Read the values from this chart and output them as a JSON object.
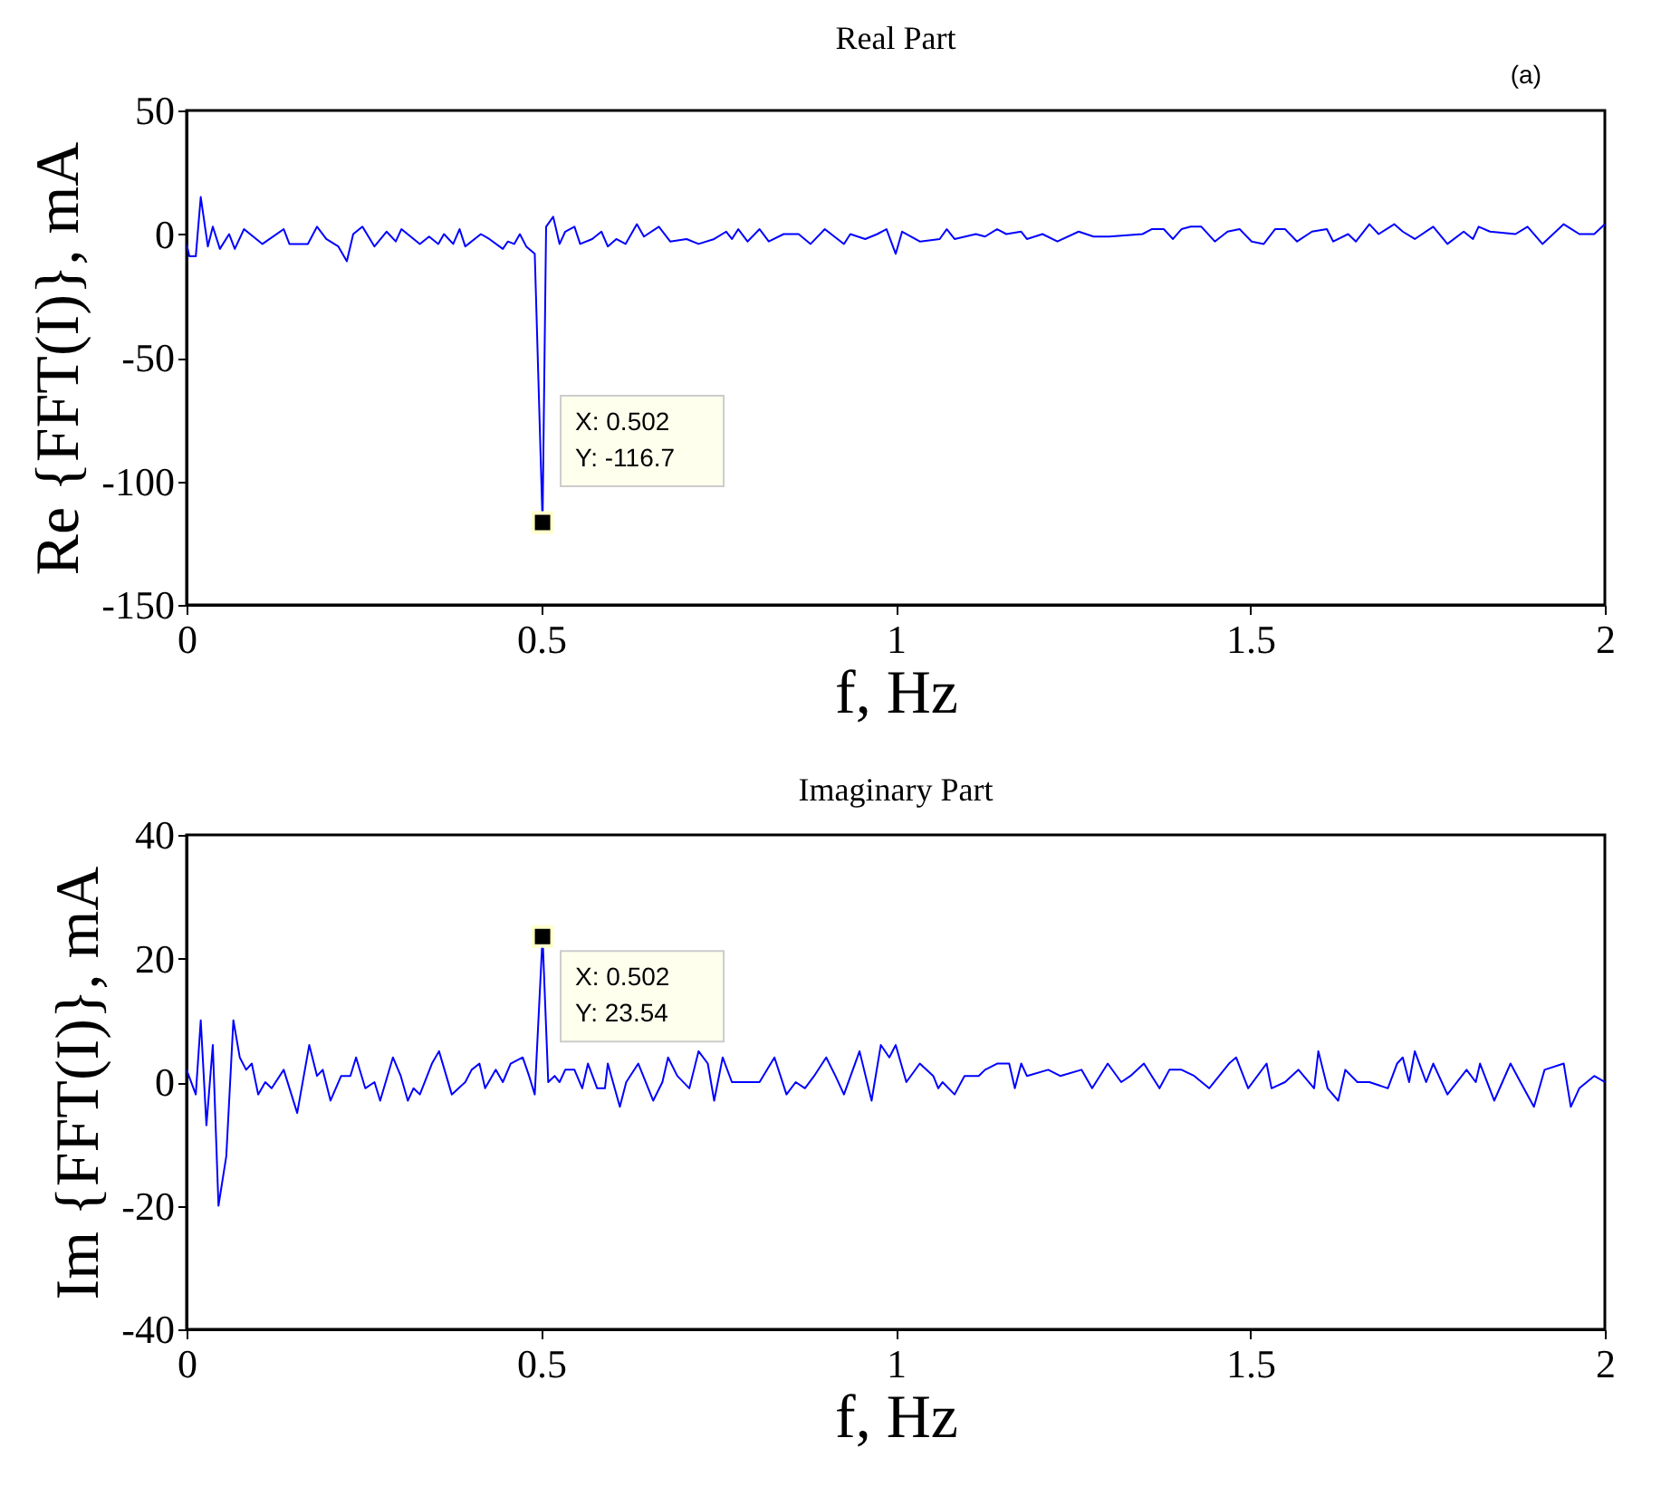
{
  "chart_data": [
    {
      "type": "line",
      "title": "Real Part",
      "xlabel": "f, Hz",
      "ylabel": "Re {FFT(I)}, mA",
      "x": [
        0,
        0.004,
        0.013,
        0.02,
        0.03,
        0.037,
        0.047,
        0.06,
        0.068,
        0.081,
        0.107,
        0.137,
        0.145,
        0.171,
        0.184,
        0.197,
        0.214,
        0.226,
        0.235,
        0.248,
        0.265,
        0.282,
        0.295,
        0.303,
        0.329,
        0.342,
        0.355,
        0.363,
        0.376,
        0.385,
        0.393,
        0.415,
        0.427,
        0.446,
        0.453,
        0.462,
        0.47,
        0.479,
        0.491,
        0.502,
        0.507,
        0.517,
        0.526,
        0.534,
        0.547,
        0.555,
        0.572,
        0.585,
        0.594,
        0.606,
        0.619,
        0.635,
        0.645,
        0.666,
        0.682,
        0.705,
        0.722,
        0.744,
        0.761,
        0.769,
        0.778,
        0.791,
        0.808,
        0.821,
        0.842,
        0.863,
        0.88,
        0.9,
        0.927,
        0.936,
        0.957,
        0.974,
        0.987,
        1.0,
        1.009,
        1.034,
        1.062,
        1.072,
        1.083,
        1.113,
        1.126,
        1.143,
        1.156,
        1.177,
        1.185,
        1.207,
        1.228,
        1.258,
        1.279,
        1.301,
        1.348,
        1.361,
        1.378,
        1.391,
        1.403,
        1.416,
        1.431,
        1.45,
        1.468,
        1.485,
        1.502,
        1.519,
        1.535,
        1.549,
        1.566,
        1.587,
        1.608,
        1.617,
        1.638,
        1.649,
        1.668,
        1.681,
        1.703,
        1.715,
        1.732,
        1.758,
        1.778,
        1.801,
        1.814,
        1.822,
        1.838,
        1.874,
        1.891,
        1.912,
        1.942,
        1.964,
        1.985,
        2.0
      ],
      "series": [
        {
          "color": "#0000ff",
          "values": [
            -4,
            -9,
            -9,
            15,
            -5,
            3,
            -6,
            0,
            -6,
            2,
            -4,
            2,
            -4,
            -4,
            3,
            -2,
            -5,
            -11,
            0,
            3,
            -5,
            1,
            -3,
            2,
            -4,
            -1,
            -4,
            0,
            -4,
            2,
            -5,
            0,
            -2,
            -6,
            -3,
            -4,
            0,
            -5,
            -8,
            -116.7,
            3,
            7,
            -4,
            1,
            3,
            -4,
            -2,
            1,
            -5,
            -2,
            -4,
            4,
            -1,
            3,
            -3,
            -2,
            -4,
            -2,
            1,
            -2,
            2,
            -3,
            2,
            -3,
            0,
            0,
            -4,
            2,
            -4,
            0,
            -2,
            0,
            2,
            -8,
            1,
            -3,
            -2,
            2,
            -2,
            0,
            -1,
            2,
            0,
            1,
            -2,
            0,
            -3,
            1,
            -1,
            -1,
            0,
            2,
            2,
            -2,
            2,
            3,
            3,
            -3,
            1,
            2,
            -3,
            -4,
            2,
            2,
            -3,
            1,
            2,
            -3,
            0,
            -3,
            4,
            0,
            4,
            1,
            -2,
            3,
            -4,
            1,
            -2,
            3,
            1,
            0,
            3,
            -4,
            4,
            0,
            0,
            4
          ]
        }
      ],
      "xlim": [
        0,
        2
      ],
      "xticks": [
        0,
        0.5,
        1,
        1.5,
        2
      ],
      "ylim": [
        -150,
        50
      ],
      "yticks": [
        -150,
        -100,
        -50,
        0,
        50
      ],
      "grid": false,
      "annotations": [
        {
          "text": "X: 0.502\nY: -116.7",
          "x": 0.502,
          "y": -116.7
        },
        "(a)"
      ]
    },
    {
      "type": "line",
      "title": "Imaginary Part",
      "xlabel": "f, Hz",
      "ylabel": "Im {FFT(I)}, mA",
      "x": [
        0,
        0.013,
        0.02,
        0.028,
        0.037,
        0.045,
        0.056,
        0.066,
        0.075,
        0.084,
        0.092,
        0.101,
        0.111,
        0.12,
        0.137,
        0.156,
        0.173,
        0.184,
        0.192,
        0.203,
        0.218,
        0.231,
        0.239,
        0.252,
        0.265,
        0.273,
        0.291,
        0.302,
        0.312,
        0.32,
        0.329,
        0.346,
        0.356,
        0.374,
        0.393,
        0.402,
        0.413,
        0.421,
        0.436,
        0.446,
        0.457,
        0.474,
        0.483,
        0.491,
        0.502,
        0.51,
        0.519,
        0.526,
        0.534,
        0.547,
        0.558,
        0.566,
        0.579,
        0.59,
        0.594,
        0.611,
        0.62,
        0.637,
        0.658,
        0.671,
        0.679,
        0.692,
        0.709,
        0.722,
        0.735,
        0.744,
        0.756,
        0.769,
        0.791,
        0.808,
        0.829,
        0.846,
        0.859,
        0.872,
        0.885,
        0.902,
        0.915,
        0.927,
        0.949,
        0.966,
        0.979,
        0.991,
        1.0,
        1.015,
        1.034,
        1.053,
        1.06,
        1.066,
        1.083,
        1.097,
        1.117,
        1.126,
        1.143,
        1.16,
        1.168,
        1.177,
        1.185,
        1.215,
        1.232,
        1.262,
        1.277,
        1.299,
        1.318,
        1.331,
        1.35,
        1.372,
        1.386,
        1.403,
        1.421,
        1.442,
        1.47,
        1.48,
        1.497,
        1.523,
        1.53,
        1.549,
        1.568,
        1.59,
        1.596,
        1.609,
        1.624,
        1.634,
        1.651,
        1.668,
        1.694,
        1.707,
        1.715,
        1.724,
        1.732,
        1.748,
        1.758,
        1.778,
        1.805,
        1.818,
        1.824,
        1.844,
        1.867,
        1.881,
        1.9,
        1.915,
        1.942,
        1.952,
        1.964,
        1.985,
        2.0
      ],
      "series": [
        {
          "color": "#0000ff",
          "values": [
            2,
            -2,
            10,
            -7,
            6,
            -20,
            -12,
            10,
            4,
            2,
            3,
            -2,
            0,
            -1,
            2,
            -5,
            6,
            1,
            2,
            -3,
            1,
            1,
            4,
            -1,
            0,
            -3,
            4,
            1,
            -3,
            -1,
            -2,
            3,
            5,
            -2,
            0,
            2,
            3,
            -1,
            2,
            0,
            3,
            4,
            1,
            -2,
            23.54,
            0,
            1,
            0,
            2,
            2,
            -1,
            3,
            -1,
            -1,
            3,
            -4,
            0,
            3,
            -3,
            0,
            4,
            1,
            -1,
            5,
            3,
            -3,
            4,
            0,
            0,
            0,
            4,
            -2,
            0,
            -1,
            1,
            4,
            1,
            -2,
            5,
            -3,
            6,
            4,
            6,
            0,
            3,
            1,
            -1,
            0,
            -2,
            1,
            1,
            2,
            3,
            3,
            -1,
            3,
            1,
            2,
            1,
            2,
            -1,
            3,
            0,
            1,
            3,
            -1,
            2,
            2,
            1,
            -1,
            3,
            4,
            -1,
            3,
            -1,
            0,
            2,
            -1,
            5,
            -1,
            -3,
            2,
            0,
            0,
            -1,
            3,
            4,
            0,
            5,
            0,
            3,
            -2,
            2,
            0,
            3,
            -3,
            3,
            0,
            -4,
            2,
            3,
            -4,
            -1,
            1,
            0
          ]
        }
      ],
      "xlim": [
        0,
        2
      ],
      "xticks": [
        0,
        0.5,
        1,
        1.5,
        2
      ],
      "ylim": [
        -40,
        40
      ],
      "yticks": [
        -40,
        -20,
        0,
        20,
        40
      ],
      "grid": false,
      "annotations": [
        {
          "text": "X: 0.502\nY: 23.54",
          "x": 0.502,
          "y": 23.54
        }
      ]
    }
  ]
}
